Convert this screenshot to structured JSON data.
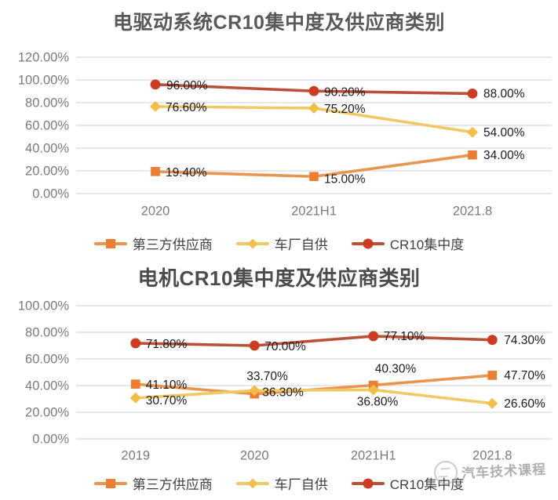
{
  "watermark": {
    "text": "汽车技术课程"
  },
  "colors": {
    "grid": "#d9d9d9",
    "axis_text": "#7a7a7a",
    "data_label": "#1a1a1a",
    "title": "#595959"
  },
  "chart_data": [
    {
      "type": "line",
      "title": "电驱动系统CR10集中度及供应商类别",
      "categories": [
        "2020",
        "2021H1",
        "2021.8"
      ],
      "ylim": [
        0,
        120
      ],
      "y_tick_step": 20,
      "y_tick_labels": [
        "0.00%",
        "20.00%",
        "40.00%",
        "60.00%",
        "80.00%",
        "100.00%",
        "120.00%"
      ],
      "grid": true,
      "legend_position": "bottom",
      "series": [
        {
          "key": "third-party-supplier",
          "name": "第三方供应商",
          "marker": "square",
          "color": "#ED7D31",
          "line_color": "#E8964F",
          "values": [
            19.4,
            15.0,
            34.0
          ],
          "labels": [
            "19.40%",
            "15.00%",
            "34.00%"
          ],
          "label_offsets": [
            [
              13,
              2
            ],
            [
              13,
              4
            ],
            [
              14,
              1
            ]
          ]
        },
        {
          "key": "oem-self-supply",
          "name": "车厂自供",
          "marker": "diamond",
          "color": "#F2BE45",
          "line_color": "#EFC966",
          "values": [
            76.6,
            75.2,
            54.0
          ],
          "labels": [
            "76.60%",
            "75.20%",
            "54.00%"
          ],
          "label_offsets": [
            [
              13,
              2
            ],
            [
              13,
              2
            ],
            [
              14,
              1
            ]
          ]
        },
        {
          "key": "cr10-concentration",
          "name": "CR10集中度",
          "marker": "circle",
          "color": "#CC3B22",
          "line_color": "#BA5038",
          "values": [
            96.0,
            90.2,
            88.0
          ],
          "labels": [
            "96.00%",
            "90.20%",
            "88.00%"
          ],
          "label_offsets": [
            [
              14,
              2
            ],
            [
              13,
              2
            ],
            [
              14,
              1
            ]
          ]
        }
      ]
    },
    {
      "type": "line",
      "title": "电机CR10集中度及供应商类别",
      "categories": [
        "2019",
        "2020",
        "2021H1",
        "2021.8"
      ],
      "ylim": [
        0,
        100
      ],
      "y_tick_step": 20,
      "y_tick_labels": [
        "0.00%",
        "20.00%",
        "40.00%",
        "60.00%",
        "80.00%",
        "100.00%"
      ],
      "grid": true,
      "legend_position": "bottom",
      "series": [
        {
          "key": "third-party-supplier",
          "name": "第三方供应商",
          "marker": "square",
          "color": "#ED7D31",
          "line_color": "#E8964F",
          "values": [
            41.1,
            33.7,
            40.3,
            47.7
          ],
          "labels": [
            "41.10%",
            "33.70%",
            "40.30%",
            "47.70%"
          ],
          "label_offsets": [
            [
              13,
              2
            ],
            [
              -10,
              -22
            ],
            [
              2,
              -20
            ],
            [
              15,
              1
            ]
          ]
        },
        {
          "key": "oem-self-supply",
          "name": "车厂自供",
          "marker": "diamond",
          "color": "#F2BE45",
          "line_color": "#EFC966",
          "values": [
            30.7,
            36.3,
            36.8,
            26.6
          ],
          "labels": [
            "30.70%",
            "36.30%",
            "36.80%",
            "26.60%"
          ],
          "label_offsets": [
            [
              13,
              4
            ],
            [
              10,
              3
            ],
            [
              -21,
              16
            ],
            [
              15,
              1
            ]
          ]
        },
        {
          "key": "cr10-concentration",
          "name": "CR10集中度",
          "marker": "circle",
          "color": "#CC3B22",
          "line_color": "#BA5038",
          "values": [
            71.8,
            70.0,
            77.1,
            74.3
          ],
          "labels": [
            "71.80%",
            "70.00%",
            "77.10%",
            "74.30%"
          ],
          "label_offsets": [
            [
              13,
              2
            ],
            [
              13,
              2
            ],
            [
              13,
              1
            ],
            [
              15,
              1
            ]
          ]
        }
      ]
    }
  ]
}
